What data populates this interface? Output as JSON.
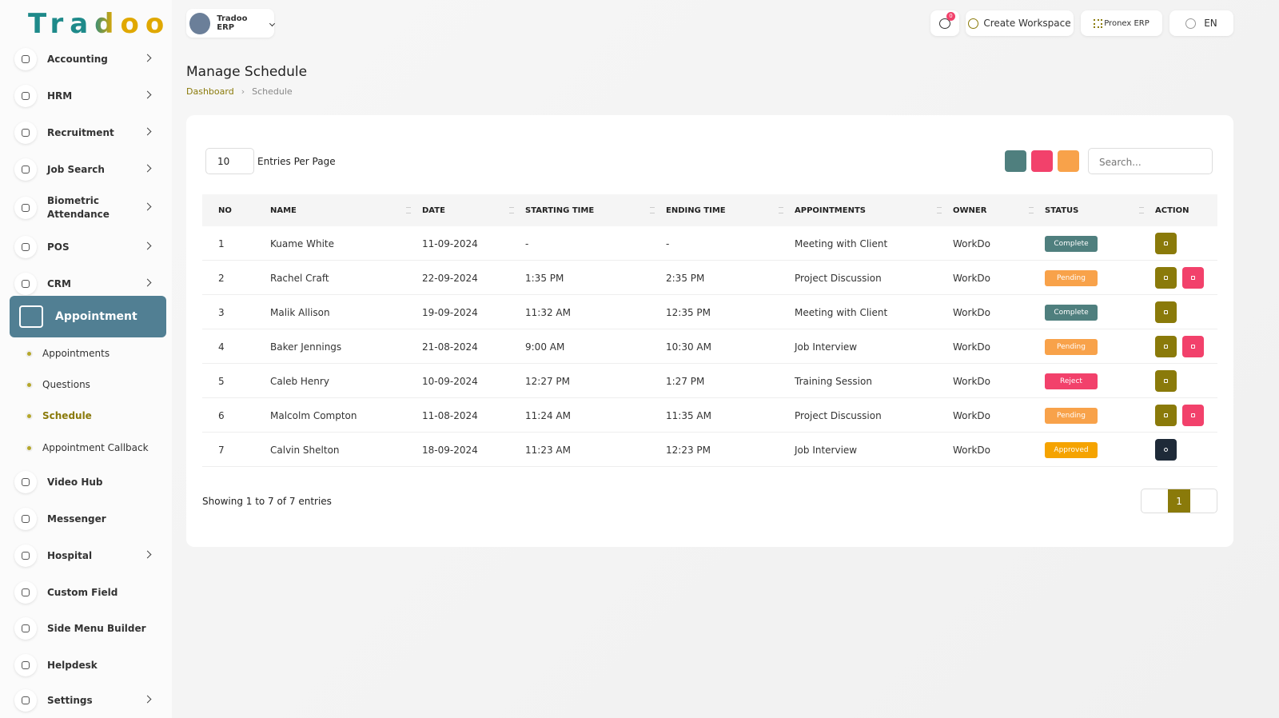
{
  "brand": "Tradoo",
  "topbar": {
    "workspace": "Tradoo ERP",
    "notifications": "0",
    "create": "Create Workspace",
    "erp": "Pronex ERP",
    "language": "EN"
  },
  "sidebar": {
    "items": [
      "Accounting",
      "HRM",
      "Recruitment",
      "Job Search",
      "Biometric Attendance",
      "POS",
      "CRM"
    ],
    "active": "Appointment",
    "subitems": [
      "Appointments",
      "Questions",
      "Schedule",
      "Appointment Callback"
    ],
    "more": [
      "Video Hub",
      "Messenger",
      "Hospital",
      "Custom Field",
      "Side Menu Builder",
      "Helpdesk",
      "Settings"
    ]
  },
  "page": {
    "title": "Manage Schedule",
    "breadcrumb": [
      "Dashboard",
      "Schedule"
    ]
  },
  "table": {
    "per_page": "10",
    "per_page_label": "Entries Per Page",
    "search": "Search...",
    "columns": [
      "NO",
      "NAME",
      "DATE",
      "STARTING TIME",
      "ENDING TIME",
      "APPOINTMENTS",
      "OWNER",
      "STATUS",
      "ACTION"
    ],
    "rows": [
      {
        "no": 1,
        "name": "Kuame White",
        "date": "11-09-2024",
        "start": "-",
        "end": "-",
        "appointment": "Meeting with Client",
        "owner": "WorkDo",
        "status": "Complete",
        "status_color": "#4f7f7e"
      },
      {
        "no": 2,
        "name": "Rachel Craft",
        "date": "22-09-2024",
        "start": "1:35 PM",
        "end": "2:35 PM",
        "appointment": "Project Discussion",
        "owner": "WorkDo",
        "status": "Pending",
        "status_color": "#f8a24a"
      },
      {
        "no": 3,
        "name": "Malik Allison",
        "date": "19-09-2024",
        "start": "11:32 AM",
        "end": "12:35 PM",
        "appointment": "Meeting with Client",
        "owner": "WorkDo",
        "status": "Complete",
        "status_color": "#4f7f7e"
      },
      {
        "no": 4,
        "name": "Baker Jennings",
        "date": "21-08-2024",
        "start": "9:00 AM",
        "end": "10:30 AM",
        "appointment": "Job Interview",
        "owner": "WorkDo",
        "status": "Pending",
        "status_color": "#f8a24a"
      },
      {
        "no": 5,
        "name": "Caleb Henry",
        "date": "10-09-2024",
        "start": "12:27 PM",
        "end": "1:27 PM",
        "appointment": "Training Session",
        "owner": "WorkDo",
        "status": "Reject",
        "status_color": "#f2416b"
      },
      {
        "no": 6,
        "name": "Malcolm Compton",
        "date": "11-08-2024",
        "start": "11:24 AM",
        "end": "11:35 AM",
        "appointment": "Project Discussion",
        "owner": "WorkDo",
        "status": "Pending",
        "status_color": "#f8a24a"
      },
      {
        "no": 7,
        "name": "Calvin Shelton",
        "date": "18-09-2024",
        "start": "11:23 AM",
        "end": "12:23 PM",
        "appointment": "Job Interview",
        "owner": "WorkDo",
        "status": "Approved",
        "status_color": "#f5a300"
      }
    ],
    "summary": "Showing 1 to 7 of 7 entries",
    "page": "1"
  }
}
